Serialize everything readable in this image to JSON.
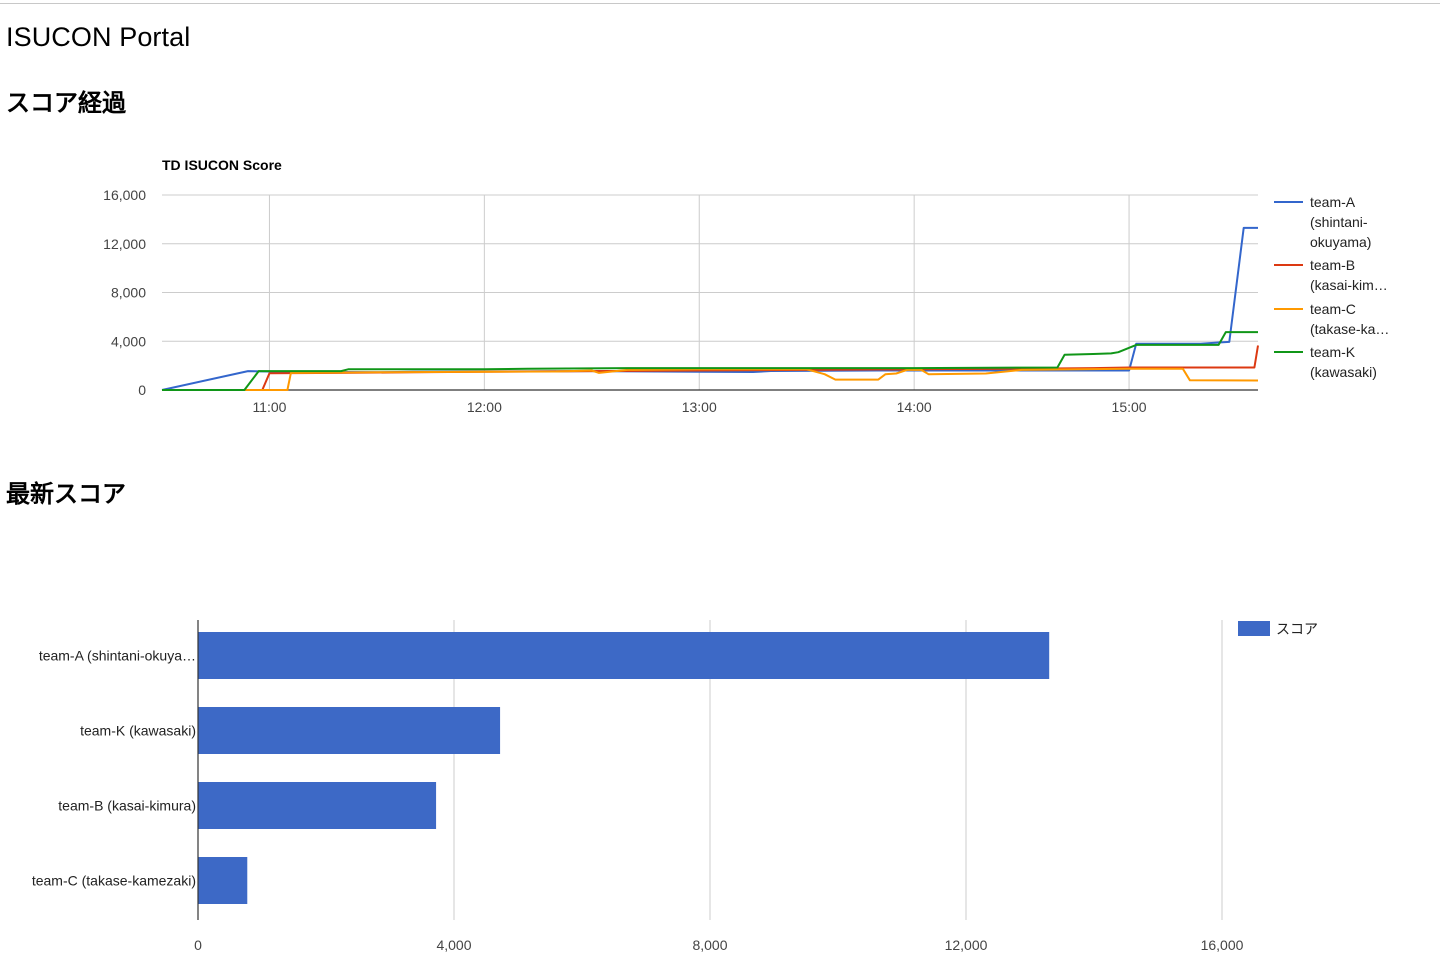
{
  "page": {
    "title": "ISUCON Portal",
    "section_progress": "スコア経過",
    "section_latest": "最新スコア"
  },
  "colors": {
    "blue": "#3366cc",
    "red": "#dc3912",
    "orange": "#ff9900",
    "green": "#109618",
    "bar": "#3d69c6",
    "grid": "#cccccc",
    "axis": "#333333"
  },
  "chart_data": [
    {
      "type": "line",
      "title": "TD ISUCON Score",
      "xlabel": "",
      "ylabel": "",
      "x_ticks": [
        "11:00",
        "12:00",
        "13:00",
        "14:00",
        "15:00"
      ],
      "x_range": [
        "10:30",
        "15:36"
      ],
      "y_ticks": [
        "0",
        "4,000",
        "8,000",
        "12,000",
        "16,000"
      ],
      "ylim": [
        0,
        16000
      ],
      "grid": true,
      "legend_position": "right",
      "series": [
        {
          "name": "team-A (shintani-okuyama)",
          "legend_lines": [
            "team-A",
            "(shintani-",
            "okuyama)"
          ],
          "color": "#3366cc",
          "points": [
            [
              "10:30",
              0
            ],
            [
              "10:54",
              1550
            ],
            [
              "11:00",
              1520
            ],
            [
              "11:20",
              1480
            ],
            [
              "11:30",
              1450
            ],
            [
              "11:40",
              1500
            ],
            [
              "12:00",
              1520
            ],
            [
              "12:30",
              1550
            ],
            [
              "13:00",
              1500
            ],
            [
              "13:15",
              1480
            ],
            [
              "13:20",
              1560
            ],
            [
              "13:50",
              1600
            ],
            [
              "14:30",
              1600
            ],
            [
              "14:55",
              1600
            ],
            [
              "15:00",
              1600
            ],
            [
              "15:02",
              3800
            ],
            [
              "15:20",
              3800
            ],
            [
              "15:25",
              3900
            ],
            [
              "15:28",
              3950
            ],
            [
              "15:32",
              13300
            ],
            [
              "15:36",
              13300
            ]
          ]
        },
        {
          "name": "team-B (kasai-kimura)",
          "legend_lines": [
            "team-B",
            "(kasai-kim…"
          ],
          "color": "#dc3912",
          "points": [
            [
              "10:30",
              0
            ],
            [
              "10:58",
              0
            ],
            [
              "11:00",
              1380
            ],
            [
              "11:20",
              1400
            ],
            [
              "11:40",
              1450
            ],
            [
              "12:00",
              1500
            ],
            [
              "12:30",
              1550
            ],
            [
              "13:00",
              1600
            ],
            [
              "13:30",
              1650
            ],
            [
              "14:00",
              1700
            ],
            [
              "14:30",
              1750
            ],
            [
              "14:50",
              1800
            ],
            [
              "15:00",
              1850
            ],
            [
              "15:20",
              1850
            ],
            [
              "15:35",
              1850
            ],
            [
              "15:36",
              3650
            ]
          ]
        },
        {
          "name": "team-C (takase-kamezaki)",
          "legend_lines": [
            "team-C",
            "(takase-ka…"
          ],
          "color": "#ff9900",
          "points": [
            [
              "10:30",
              0
            ],
            [
              "11:05",
              0
            ],
            [
              "11:06",
              1400
            ],
            [
              "11:30",
              1450
            ],
            [
              "12:00",
              1500
            ],
            [
              "12:20",
              1520
            ],
            [
              "12:30",
              1600
            ],
            [
              "12:32",
              1400
            ],
            [
              "12:35",
              1500
            ],
            [
              "12:40",
              1650
            ],
            [
              "13:00",
              1700
            ],
            [
              "13:30",
              1700
            ],
            [
              "13:35",
              1300
            ],
            [
              "13:38",
              850
            ],
            [
              "13:50",
              850
            ],
            [
              "13:52",
              1300
            ],
            [
              "13:55",
              1350
            ],
            [
              "13:58",
              1650
            ],
            [
              "14:02",
              1650
            ],
            [
              "14:04",
              1300
            ],
            [
              "14:20",
              1350
            ],
            [
              "14:30",
              1650
            ],
            [
              "15:00",
              1750
            ],
            [
              "15:15",
              1750
            ],
            [
              "15:17",
              800
            ],
            [
              "15:36",
              780
            ]
          ]
        },
        {
          "name": "team-K (kawasaki)",
          "legend_lines": [
            "team-K",
            "(kawasaki)"
          ],
          "color": "#109618",
          "points": [
            [
              "10:30",
              0
            ],
            [
              "10:53",
              0
            ],
            [
              "10:57",
              1550
            ],
            [
              "11:20",
              1550
            ],
            [
              "11:22",
              1700
            ],
            [
              "12:00",
              1700
            ],
            [
              "12:12",
              1750
            ],
            [
              "12:40",
              1800
            ],
            [
              "13:00",
              1800
            ],
            [
              "13:30",
              1800
            ],
            [
              "14:00",
              1800
            ],
            [
              "14:40",
              1850
            ],
            [
              "14:42",
              2900
            ],
            [
              "14:50",
              2950
            ],
            [
              "14:55",
              3000
            ],
            [
              "14:57",
              3100
            ],
            [
              "15:02",
              3700
            ],
            [
              "15:25",
              3700
            ],
            [
              "15:27",
              4750
            ],
            [
              "15:36",
              4750
            ]
          ]
        }
      ]
    },
    {
      "type": "bar",
      "orientation": "horizontal",
      "title": "",
      "categories": [
        "team-A (shintani-okuya…",
        "team-K (kawasaki)",
        "team-B (kasai-kimura)",
        "team-C (takase-kamezaki)"
      ],
      "values": [
        13300,
        4720,
        3720,
        770
      ],
      "x_ticks": [
        "0",
        "4,000",
        "8,000",
        "12,000",
        "16,000"
      ],
      "xlim": [
        0,
        16000
      ],
      "grid": true,
      "legend_position": "top-right",
      "series": [
        {
          "name": "スコア",
          "values": [
            13300,
            4720,
            3720,
            770
          ]
        }
      ]
    }
  ]
}
